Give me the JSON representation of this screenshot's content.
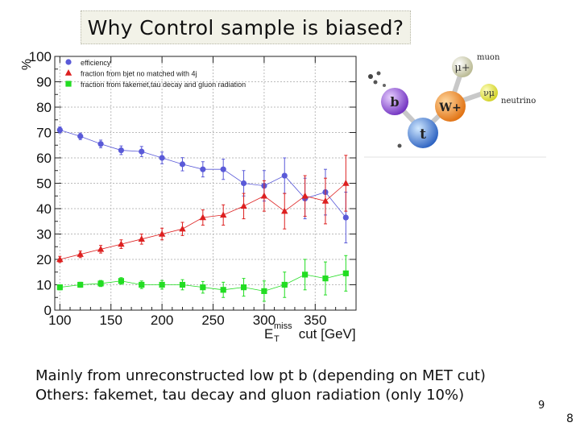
{
  "slide": {
    "title": "Why Control sample is biased?",
    "line1": "Mainly from unreconstructed low pt b (depending on MET cut)",
    "line2": "Others: fakemet, tau decay and gluon radiation (only 10%)",
    "page_number_small": "9",
    "page_number": "8"
  },
  "diagram": {
    "muon_label": "muon",
    "neutrino_label": "neutrino",
    "mu_symbol": "μ+",
    "nu_symbol": "νμ",
    "b_symbol": "b",
    "w_symbol": "W+",
    "t_symbol": "t",
    "colors": {
      "mu": "#d8d8a8",
      "nu": "#e8e840",
      "w": "#f08a2a",
      "b": "#8a4ad0",
      "t": "#3a7ad8"
    }
  },
  "chart_data": {
    "type": "scatter",
    "ylabel": "%",
    "xlabel_main": "E",
    "xlabel_sup": "miss",
    "xlabel_sub": "T",
    "xlabel_rest": " cut [GeV]",
    "xlim": [
      95,
      390
    ],
    "ylim": [
      0,
      100
    ],
    "xticks": [
      100,
      150,
      200,
      250,
      300,
      350
    ],
    "yticks": [
      0,
      10,
      20,
      30,
      40,
      50,
      60,
      70,
      80,
      90,
      100
    ],
    "legend_position": "top-left",
    "x": [
      100,
      120,
      140,
      160,
      180,
      200,
      220,
      240,
      260,
      280,
      300,
      320,
      340,
      360,
      380
    ],
    "series": [
      {
        "name": "efficiency",
        "marker": "circle",
        "color": "#5a5ad8",
        "values": [
          71,
          68.5,
          65.5,
          63,
          62.5,
          60,
          57.5,
          55.5,
          55.5,
          50,
          49,
          53,
          44,
          46.5,
          36.5
        ],
        "errors": [
          1.2,
          1.3,
          1.5,
          1.7,
          2,
          2.3,
          2.6,
          3,
          4,
          5,
          6,
          7,
          8,
          9,
          10
        ]
      },
      {
        "name": "fraction from bjet no matched with 4j",
        "marker": "triangle",
        "color": "#dd2020",
        "values": [
          20,
          22,
          24,
          26,
          28,
          30,
          32,
          36.5,
          37.5,
          41,
          45,
          39,
          45,
          43,
          50
        ],
        "errors": [
          1.2,
          1.3,
          1.5,
          1.7,
          2,
          2.3,
          2.6,
          3,
          4,
          5,
          6,
          7,
          8,
          9,
          11
        ]
      },
      {
        "name": "fraction from fakemet,tau decay and gluon radiation",
        "marker": "square",
        "color": "#22dd22",
        "values": [
          9,
          10,
          10.5,
          11.5,
          10,
          10,
          10,
          9,
          8,
          9,
          7.5,
          10,
          14,
          12.5,
          14.5
        ],
        "errors": [
          1,
          1,
          1.2,
          1.3,
          1.5,
          1.7,
          2,
          2.3,
          3,
          3.5,
          4,
          5,
          6,
          6.5,
          7
        ]
      }
    ]
  }
}
